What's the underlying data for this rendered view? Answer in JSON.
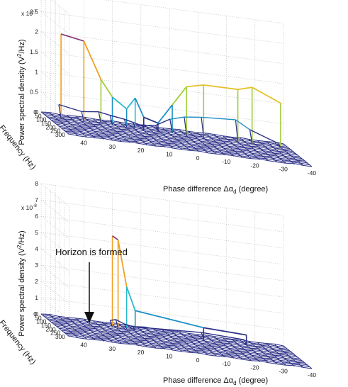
{
  "chart_data": [
    {
      "type": "surface",
      "title": "",
      "zlabel": "Power spectral density (V",
      "zlabel_sup": "2",
      "zlabel_tail": "/Hz)",
      "ylabel": "Frequency (Hz)",
      "xlabel": "Phase difference Δα",
      "xlabel_sub": "d",
      "xlabel_tail": " (degree)",
      "z_exponent": "x 10",
      "z_exponent_sup": "-7",
      "z_ticks": [
        "0",
        "0.5",
        "1",
        "1.5",
        "2",
        "2.5",
        "3"
      ],
      "zlim": [
        0,
        3e-07
      ],
      "y_ticks": [
        "0",
        "50",
        "100",
        "150",
        "200",
        "250",
        "300"
      ],
      "ylim": [
        0,
        300
      ],
      "x_ticks": [
        "40",
        "30",
        "20",
        "10",
        "0",
        "-10",
        "-20",
        "-30",
        "-40"
      ],
      "xlim": [
        45,
        -40
      ],
      "peak_lines": [
        {
          "x": 40,
          "values": [
            0,
            3e-08,
            2.1e-07
          ]
        },
        {
          "x": 32,
          "values": [
            0,
            2e-08,
            2e-07
          ]
        },
        {
          "x": 26,
          "values": [
            0,
            2.5e-08,
            1.1e-07
          ]
        },
        {
          "x": 22,
          "values": [
            0,
            2e-08,
            7e-08
          ]
        },
        {
          "x": 17,
          "values": [
            0,
            1.5e-08,
            4.5e-08
          ]
        },
        {
          "x": 14,
          "values": [
            0,
            1e-08,
            7.5e-08
          ]
        },
        {
          "x": 11,
          "values": [
            0,
            5e-09,
            3e-08
          ]
        },
        {
          "x": 6,
          "values": [
            0,
            1e-08,
            2e-08
          ]
        },
        {
          "x": 1,
          "values": [
            0,
            3e-08,
            7e-08
          ]
        },
        {
          "x": -4,
          "values": [
            0,
            4e-08,
            1.2e-07
          ]
        },
        {
          "x": -10,
          "values": [
            0,
            4.5e-08,
            1.3e-07
          ]
        },
        {
          "x": -22,
          "values": [
            0,
            5e-08,
            1.3e-07
          ]
        },
        {
          "x": -27,
          "values": [
            0,
            3e-08,
            1.4e-07
          ]
        },
        {
          "x": -37,
          "values": [
            0,
            5e-09,
            1.1e-07
          ]
        }
      ]
    },
    {
      "type": "surface",
      "title": "",
      "zlabel": "Power spectral density (V",
      "zlabel_sup": "2",
      "zlabel_tail": "/Hz)",
      "ylabel": "Frequency (Hz)",
      "xlabel": "Phase difference Δα",
      "xlabel_sub": "d",
      "xlabel_tail": " (degree)",
      "z_exponent": "x 10",
      "z_exponent_sup": "-8",
      "z_ticks": [
        "0",
        "1",
        "2",
        "3",
        "4",
        "5",
        "6",
        "7",
        "8"
      ],
      "zlim": [
        0,
        8e-08
      ],
      "y_ticks": [
        "0",
        "50",
        "100",
        "150",
        "200",
        "250",
        "300"
      ],
      "ylim": [
        0,
        300
      ],
      "x_ticks": [
        "40",
        "30",
        "20",
        "10",
        "0",
        "-10",
        "-20",
        "-30",
        "-40"
      ],
      "xlim": [
        45,
        -40
      ],
      "annotation": "Horizon is formed",
      "peak_lines": [
        {
          "x": 22,
          "values": [
            0,
            3e-09,
            5.6e-08
          ]
        },
        {
          "x": 20,
          "values": [
            0,
            4e-09,
            5.4e-08
          ]
        },
        {
          "x": 17,
          "values": [
            0,
            2e-09,
            2.6e-08
          ]
        },
        {
          "x": 14,
          "values": [
            0,
            1e-09,
            1.2e-08
          ]
        },
        {
          "x": -10,
          "values": [
            0,
            3e-09,
            7e-09
          ]
        },
        {
          "x": -25,
          "values": [
            0,
            2e-09,
            6e-09
          ]
        }
      ]
    }
  ]
}
